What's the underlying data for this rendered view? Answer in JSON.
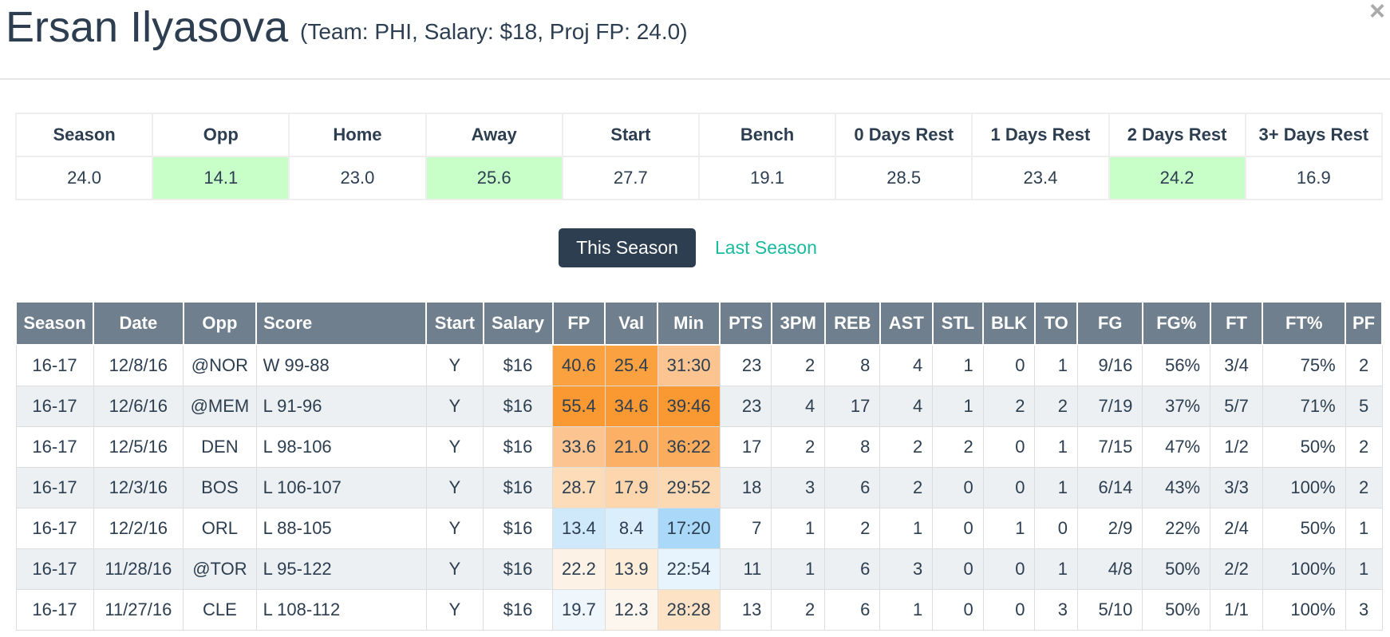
{
  "header": {
    "player_name": "Ersan Ilyasova",
    "player_info": "(Team: PHI, Salary: $18, Proj FP: 24.0)",
    "close_label": "×"
  },
  "splits": {
    "columns": [
      "Season",
      "Opp",
      "Home",
      "Away",
      "Start",
      "Bench",
      "0 Days Rest",
      "1 Days Rest",
      "2 Days Rest",
      "3+ Days Rest"
    ],
    "values": [
      "24.0",
      "14.1",
      "23.0",
      "25.6",
      "27.7",
      "19.1",
      "28.5",
      "23.4",
      "24.2",
      "16.9"
    ],
    "highlighted": [
      false,
      true,
      false,
      true,
      false,
      false,
      false,
      false,
      true,
      false
    ],
    "highlight_color": "#c8ffc8"
  },
  "toggle": {
    "active_label": "This Season",
    "inactive_label": "Last Season"
  },
  "game_log": {
    "columns": [
      "Season",
      "Date",
      "Opp",
      "Score",
      "Start",
      "Salary",
      "FP",
      "Val",
      "Min",
      "PTS",
      "3PM",
      "REB",
      "AST",
      "STL",
      "BLK",
      "TO",
      "FG",
      "FG%",
      "FT",
      "FT%",
      "PF"
    ],
    "rows": [
      {
        "cells": [
          "16-17",
          "12/8/16",
          "@NOR",
          "W 99-88",
          "Y",
          "$16",
          "40.6",
          "25.4",
          "31:30",
          "23",
          "2",
          "8",
          "4",
          "1",
          "0",
          "1",
          "9/16",
          "56%",
          "3/4",
          "75%",
          "2"
        ],
        "heat": [
          "#fba140",
          "#fba140",
          "#fcc490"
        ]
      },
      {
        "cells": [
          "16-17",
          "12/6/16",
          "@MEM",
          "L 91-96",
          "Y",
          "$16",
          "55.4",
          "34.6",
          "39:46",
          "23",
          "4",
          "17",
          "4",
          "1",
          "2",
          "2",
          "7/19",
          "37%",
          "5/7",
          "71%",
          "5"
        ],
        "heat": [
          "#fa9832",
          "#fa9832",
          "#fa9832"
        ]
      },
      {
        "cells": [
          "16-17",
          "12/5/16",
          "DEN",
          "L 98-106",
          "Y",
          "$16",
          "33.6",
          "21.0",
          "36:22",
          "17",
          "2",
          "8",
          "2",
          "2",
          "0",
          "1",
          "7/15",
          "47%",
          "1/2",
          "50%",
          "2"
        ],
        "heat": [
          "#fcc490",
          "#fbb066",
          "#fbac5c"
        ]
      },
      {
        "cells": [
          "16-17",
          "12/3/16",
          "BOS",
          "L 106-107",
          "Y",
          "$16",
          "28.7",
          "17.9",
          "29:52",
          "18",
          "3",
          "6",
          "2",
          "0",
          "0",
          "1",
          "6/14",
          "43%",
          "3/3",
          "100%",
          "2"
        ],
        "heat": [
          "#fddcba",
          "#fdd6ae",
          "#fdd9b3"
        ]
      },
      {
        "cells": [
          "16-17",
          "12/2/16",
          "ORL",
          "L 88-105",
          "Y",
          "$16",
          "13.4",
          "8.4",
          "17:20",
          "7",
          "1",
          "2",
          "1",
          "0",
          "1",
          "0",
          "2/9",
          "22%",
          "2/4",
          "50%",
          "1"
        ],
        "heat": [
          "#cfe9fb",
          "#dbeefc",
          "#a9d8f8"
        ]
      },
      {
        "cells": [
          "16-17",
          "11/28/16",
          "@TOR",
          "L 95-122",
          "Y",
          "$16",
          "22.2",
          "13.9",
          "22:54",
          "11",
          "1",
          "6",
          "3",
          "0",
          "0",
          "1",
          "4/8",
          "50%",
          "2/2",
          "100%",
          "1"
        ],
        "heat": [
          "#fdf2e6",
          "#fdecd8",
          "#e8f4fd"
        ]
      },
      {
        "cells": [
          "16-17",
          "11/27/16",
          "CLE",
          "L 108-112",
          "Y",
          "$16",
          "19.7",
          "12.3",
          "28:28",
          "13",
          "2",
          "6",
          "1",
          "0",
          "0",
          "3",
          "5/10",
          "50%",
          "1/1",
          "100%",
          "3"
        ],
        "heat": [
          "#eff7fd",
          "#fdf6ee",
          "#fde2c6"
        ]
      }
    ]
  }
}
